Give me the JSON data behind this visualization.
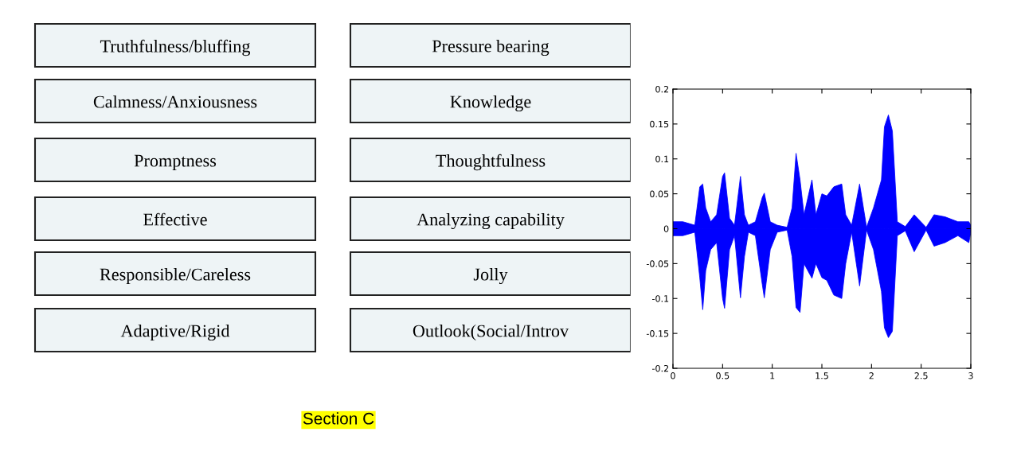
{
  "chart_data": [
    {
      "type": "other",
      "annotations": [
        "Truthfulness/bluffing",
        "Calmness/Anxiousness",
        "Promptness",
        "Effective",
        "Responsible/Careless",
        "Adaptive/Rigid",
        "Pressure bearing",
        "Knowledge",
        "Thoughtfulness",
        "Analyzing capability",
        "Jolly",
        "Outlook(Social/Introv",
        "Section C"
      ]
    },
    {
      "type": "area",
      "x": [
        0,
        0.1,
        0.22,
        0.27,
        0.3,
        0.33,
        0.38,
        0.44,
        0.5,
        0.52,
        0.57,
        0.62,
        0.68,
        0.72,
        0.76,
        0.83,
        0.9,
        0.92,
        0.98,
        1.05,
        1.15,
        1.2,
        1.24,
        1.28,
        1.32,
        1.4,
        1.44,
        1.5,
        1.55,
        1.62,
        1.7,
        1.74,
        1.8,
        1.88,
        1.95,
        2.02,
        2.1,
        2.13,
        2.17,
        2.21,
        2.26,
        2.34,
        2.43,
        2.55,
        2.63,
        2.74,
        2.87,
        2.98,
        3.0
      ],
      "series": [
        {
          "color": "#0000ff",
          "values": [
            0.01,
            0.01,
            0.005,
            0.06,
            0.064,
            0.03,
            0.01,
            0.02,
            0.075,
            0.08,
            0.015,
            0.005,
            0.075,
            0.02,
            0.005,
            0.01,
            0.045,
            0.051,
            0.01,
            0.005,
            0.002,
            0.03,
            0.108,
            0.07,
            0.02,
            0.07,
            0.02,
            0.05,
            0.047,
            0.06,
            0.064,
            0.02,
            0.005,
            0.064,
            0.002,
            0.03,
            0.07,
            0.146,
            0.163,
            0.14,
            0.01,
            0.003,
            0.02,
            0.002,
            0.02,
            0.017,
            0.01,
            0.01,
            0.005
          ]
        },
        {
          "color": "#0000ff",
          "values": [
            -0.01,
            -0.01,
            -0.005,
            -0.07,
            -0.116,
            -0.06,
            -0.03,
            -0.02,
            -0.1,
            -0.114,
            -0.03,
            -0.01,
            -0.099,
            -0.04,
            -0.005,
            -0.01,
            -0.08,
            -0.099,
            -0.03,
            -0.005,
            -0.002,
            -0.04,
            -0.113,
            -0.12,
            -0.05,
            -0.071,
            -0.05,
            -0.07,
            -0.074,
            -0.095,
            -0.1,
            -0.05,
            -0.005,
            -0.082,
            -0.002,
            -0.03,
            -0.09,
            -0.142,
            -0.156,
            -0.147,
            -0.01,
            -0.003,
            -0.033,
            -0.002,
            -0.025,
            -0.02,
            -0.01,
            -0.02,
            -0.005
          ]
        }
      ],
      "xlim": [
        0,
        3
      ],
      "xticks": [
        0,
        0.5,
        1,
        1.5,
        2,
        2.5,
        3
      ],
      "ylim": [
        -0.2,
        0.2
      ],
      "yticks": [
        -0.2,
        -0.15,
        -0.1,
        -0.05,
        0,
        0.05,
        0.1,
        0.15,
        0.2
      ],
      "grid": false
    }
  ]
}
